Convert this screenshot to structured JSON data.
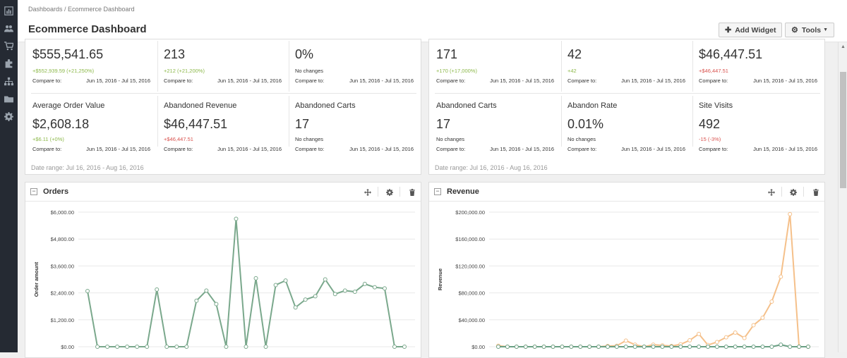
{
  "breadcrumb": "Dashboards / Ecommerce Dashboard",
  "page_title": "Ecommerce Dashboard",
  "buttons": {
    "add_widget": "Add Widget",
    "tools": "Tools"
  },
  "sidebar_icons": [
    "bar-chart-icon",
    "users-icon",
    "cart-icon",
    "puzzle-icon",
    "sitemap-icon",
    "folder-icon",
    "gear-icon"
  ],
  "colors": {
    "positive": "#8cb84a",
    "negative": "#d9534f",
    "neutral": "#333333",
    "orders_line": "#7aa88c",
    "revenue_line": "#f5c08a",
    "revenue_line2": "#6aa084"
  },
  "left_stats": {
    "row1": [
      {
        "label": "",
        "value": "$555,541.65",
        "change": "+$552,939.59 (+21,250%)",
        "tone": "positive",
        "compare_label": "Compare to:",
        "compare_range": "Jun 15, 2016 - Jul 15, 2016"
      },
      {
        "label": "",
        "value": "213",
        "change": "+212 (+21,200%)",
        "tone": "positive",
        "compare_label": "Compare to:",
        "compare_range": "Jun 15, 2016 - Jul 15, 2016"
      },
      {
        "label": "",
        "value": "0%",
        "change": "No changes",
        "tone": "neutral",
        "compare_label": "Compare to:",
        "compare_range": "Jun 15, 2016 - Jul 15, 2016"
      }
    ],
    "row2": [
      {
        "label": "Average Order Value",
        "value": "$2,608.18",
        "change": "+$6.11 (+0%)",
        "tone": "positive",
        "compare_label": "Compare to:",
        "compare_range": "Jun 15, 2016 - Jul 15, 2016"
      },
      {
        "label": "Abandoned Revenue",
        "value": "$46,447.51",
        "change": "+$46,447.51",
        "tone": "negative",
        "compare_label": "Compare to:",
        "compare_range": "Jun 15, 2016 - Jul 15, 2016"
      },
      {
        "label": "Abandoned Carts",
        "value": "17",
        "change": "No changes",
        "tone": "neutral",
        "compare_label": "Compare to:",
        "compare_range": "Jun 15, 2016 - Jul 15, 2016"
      }
    ],
    "date_range": "Date range: Jul 16, 2016 - Aug 16, 2016"
  },
  "right_stats": {
    "row1": [
      {
        "label": "",
        "value": "171",
        "change": "+170 (+17,000%)",
        "tone": "positive",
        "compare_label": "Compare to:",
        "compare_range": "Jun 15, 2016 - Jul 15, 2016"
      },
      {
        "label": "",
        "value": "42",
        "change": "+42",
        "tone": "positive",
        "compare_label": "Compare to:",
        "compare_range": "Jun 15, 2016 - Jul 15, 2016"
      },
      {
        "label": "",
        "value": "$46,447.51",
        "change": "+$46,447.51",
        "tone": "negative",
        "compare_label": "Compare to:",
        "compare_range": "Jun 15, 2016 - Jul 15, 2016"
      }
    ],
    "row2": [
      {
        "label": "Abandoned Carts",
        "value": "17",
        "change": "No changes",
        "tone": "neutral",
        "compare_label": "Compare to:",
        "compare_range": "Jun 15, 2016 - Jul 15, 2016"
      },
      {
        "label": "Abandon Rate",
        "value": "0.01%",
        "change": "No changes",
        "tone": "neutral",
        "compare_label": "Compare to:",
        "compare_range": "Jun 15, 2016 - Jul 15, 2016"
      },
      {
        "label": "Site Visits",
        "value": "492",
        "change": "-15 (-3%)",
        "tone": "negative",
        "compare_label": "Compare to:",
        "compare_range": "Jun 15, 2016 - Jul 15, 2016"
      }
    ],
    "date_range": "Date range: Jul 16, 2016 - Aug 16, 2016"
  },
  "widgets": {
    "orders": {
      "title": "Orders",
      "tools": [
        "move-icon",
        "gear-icon",
        "trash-icon"
      ]
    },
    "revenue": {
      "title": "Revenue",
      "tools": [
        "move-icon",
        "gear-icon",
        "trash-icon"
      ]
    }
  },
  "chart_data": [
    {
      "type": "line",
      "title": "",
      "xlabel": "",
      "ylabel": "Order amount",
      "ylim": [
        0,
        6000
      ],
      "y_ticks": [
        "$0.00",
        "$1,200.00",
        "$2,400.00",
        "$3,600.00",
        "$4,800.00",
        "$6,000.00"
      ],
      "grid": true,
      "series": [
        {
          "values": [
            2480,
            0,
            0,
            0,
            0,
            0,
            0,
            2550,
            0,
            0,
            0,
            2050,
            2500,
            1900,
            0,
            5700,
            0,
            3050,
            0,
            2750,
            2950,
            1750,
            2100,
            2250,
            3000,
            2350,
            2500,
            2450,
            2800,
            2650,
            2600,
            0,
            0
          ]
        }
      ]
    },
    {
      "type": "line",
      "title": "",
      "xlabel": "",
      "ylabel": "Revenue",
      "ylim": [
        0,
        200000
      ],
      "y_ticks": [
        "$0.00",
        "$40,000.00",
        "$80,000.00",
        "$120,000.00",
        "$160,000.00",
        "$200,000.00"
      ],
      "grid": true,
      "series": [
        {
          "values": [
            1500,
            0,
            0,
            0,
            0,
            0,
            0,
            0,
            0,
            0,
            0,
            0,
            1000,
            1500,
            9000,
            3000,
            0,
            3000,
            2000,
            1000,
            3500,
            9500,
            19000,
            2500,
            7000,
            14000,
            21000,
            13000,
            32000,
            43000,
            67000,
            104000,
            197000,
            0,
            0
          ]
        },
        {
          "values": [
            0,
            0,
            0,
            0,
            0,
            0,
            0,
            0,
            0,
            0,
            0,
            0,
            0,
            0,
            0,
            0,
            0,
            0,
            0,
            0,
            0,
            0,
            0,
            0,
            0,
            0,
            0,
            0,
            0,
            0,
            0,
            3000,
            0,
            0,
            0
          ]
        }
      ]
    }
  ]
}
